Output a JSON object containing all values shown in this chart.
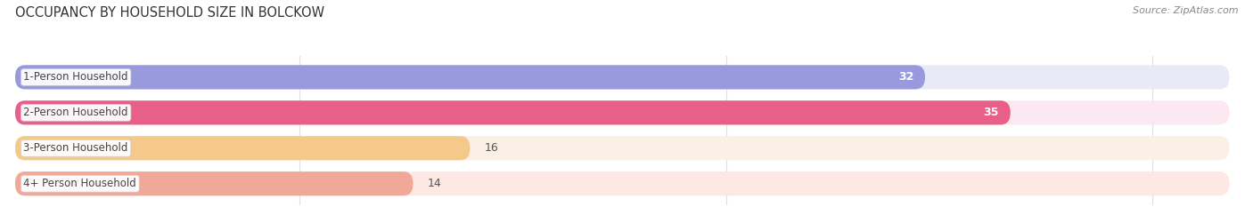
{
  "title": "OCCUPANCY BY HOUSEHOLD SIZE IN BOLCKOW",
  "source": "Source: ZipAtlas.com",
  "categories": [
    "1-Person Household",
    "2-Person Household",
    "3-Person Household",
    "4+ Person Household"
  ],
  "values": [
    32,
    35,
    16,
    14
  ],
  "bar_colors": [
    "#9999dd",
    "#e8608a",
    "#f5c98a",
    "#f0a898"
  ],
  "bar_bg_colors": [
    "#e8eaf5",
    "#fce8f0",
    "#faf0e6",
    "#fde8e4"
  ],
  "figsize": [
    14.06,
    2.33
  ],
  "dpi": 100,
  "title_fontsize": 10.5,
  "source_fontsize": 8,
  "bar_label_fontsize": 9,
  "category_fontsize": 8.5,
  "tick_fontsize": 9,
  "bar_height": 0.68,
  "xlim_max": 43,
  "xticks": [
    10,
    25,
    40
  ],
  "bg_color": "#ffffff",
  "chart_bg": "#f5f5f5",
  "grid_color": "#e0e0e0"
}
